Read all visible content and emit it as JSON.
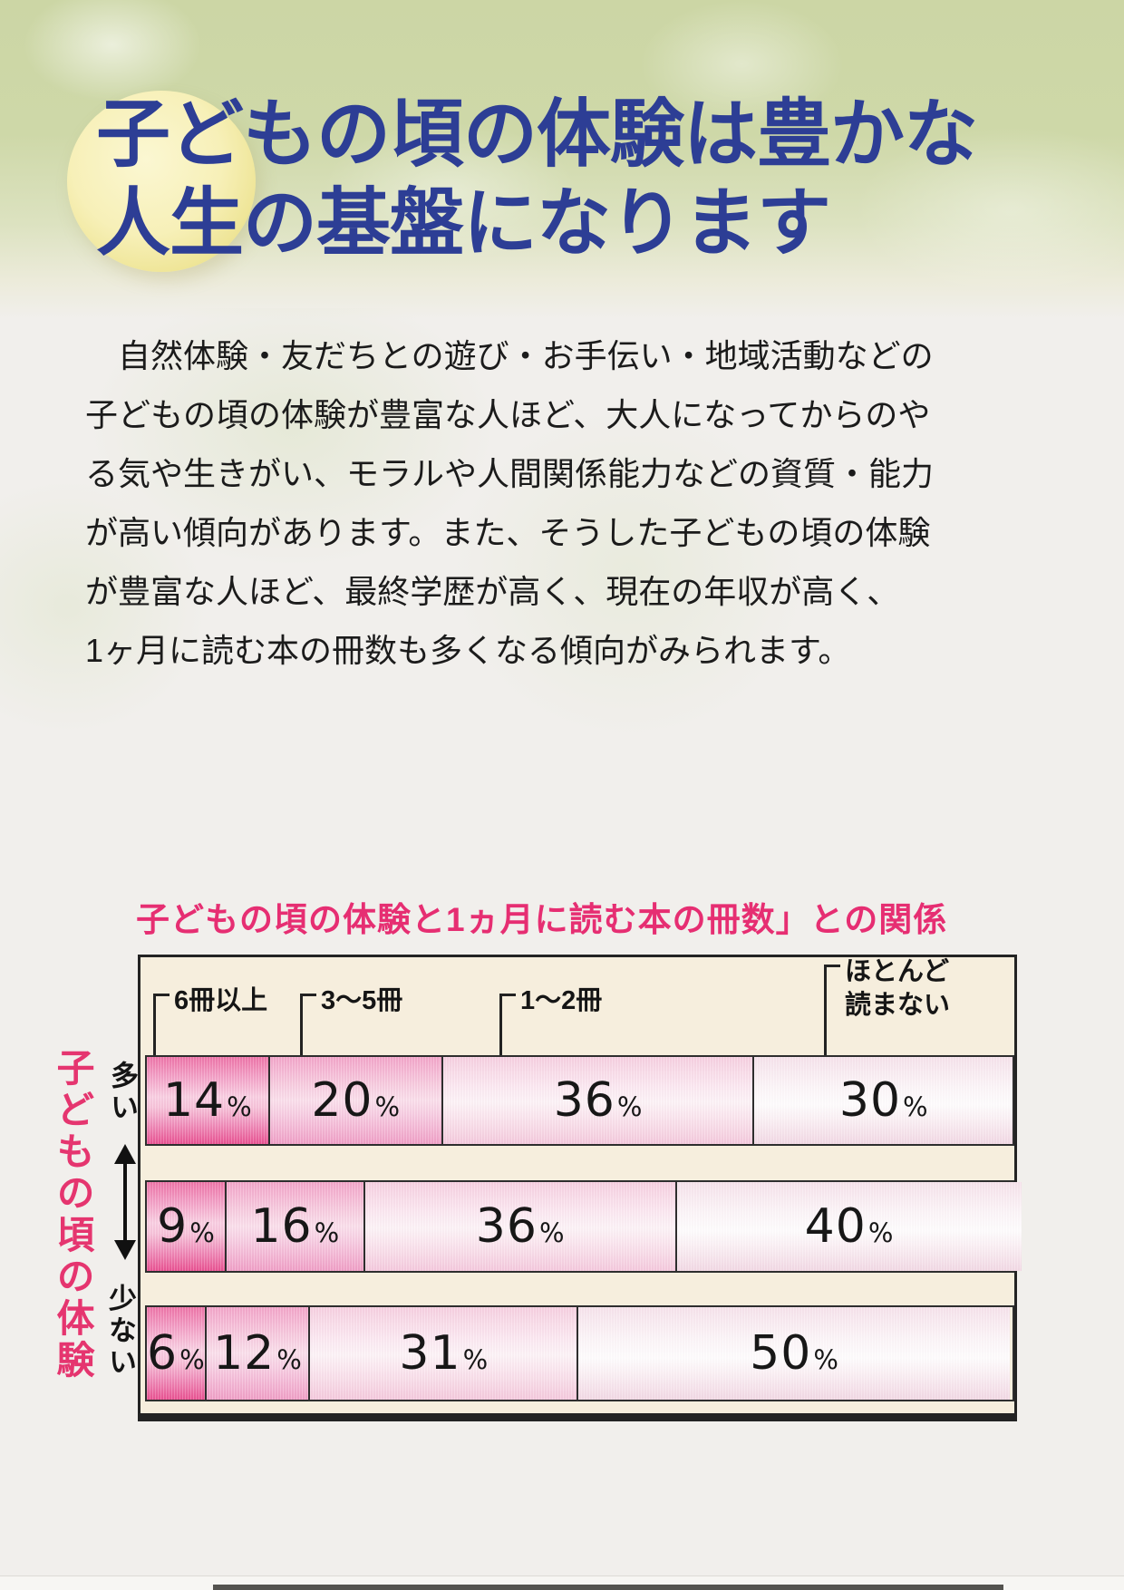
{
  "header": {
    "title_line1": "子どもの頃の体験は豊かな",
    "title_line2": "人生の基盤になります"
  },
  "paragraph": {
    "lines": [
      "　自然体験・友だちとの遊び・お手伝い・地域活動などの",
      "子どもの頃の体験が豊富な人ほど、大人になってからのや",
      "る気や生きがい、モラルや人間関係能力などの資質・能力",
      "が高い傾向があります。また、そうした子どもの頃の体験",
      "が豊富な人ほど、最終学歴が高く、現在の年収が高く、",
      "1ヶ月に読む本の冊数も多くなる傾向がみられます。"
    ]
  },
  "chart": {
    "title": "子どもの頃の体験と1ヵ月に読む本の冊数」との関係",
    "axis_label": "子どもの頃の体験",
    "axis_top": "多い",
    "axis_bottom": "少ない",
    "legend_display": [
      "6冊以上",
      "3〜5冊",
      "1〜2冊",
      "ほとんど\n読まない"
    ],
    "unit": "%"
  },
  "chart_data": {
    "type": "bar",
    "orientation": "horizontal_stacked",
    "title": "子どもの頃の体験と1ヵ月に読む本の冊数」との関係",
    "categories": [
      "多い",
      "",
      "少ない"
    ],
    "series": [
      {
        "name": "6冊以上",
        "values": [
          14,
          9,
          6
        ]
      },
      {
        "name": "3〜5冊",
        "values": [
          20,
          16,
          12
        ]
      },
      {
        "name": "1〜2冊",
        "values": [
          36,
          36,
          31
        ]
      },
      {
        "name": "ほとんど読まない",
        "values": [
          30,
          40,
          50
        ]
      }
    ],
    "unit": "%",
    "xlim": [
      0,
      100
    ],
    "legend_position": "top",
    "axis_label": "子どもの頃の体験",
    "axis_top_label": "多い",
    "axis_bottom_label": "少ない"
  },
  "colors": {
    "title_blue": "#2d3e95",
    "accent_pink": "#e62e72",
    "chart_background_cream": "#f6eedd",
    "segment_pink_strong": "#ea5292",
    "segment_pink_medium": "#f19fc7",
    "segment_pink_light": "#f5c9dd",
    "segment_pink_faint": "#f2d8e4",
    "header_green": "#ccd6a5",
    "moon_yellow": "#f7f0b8"
  }
}
